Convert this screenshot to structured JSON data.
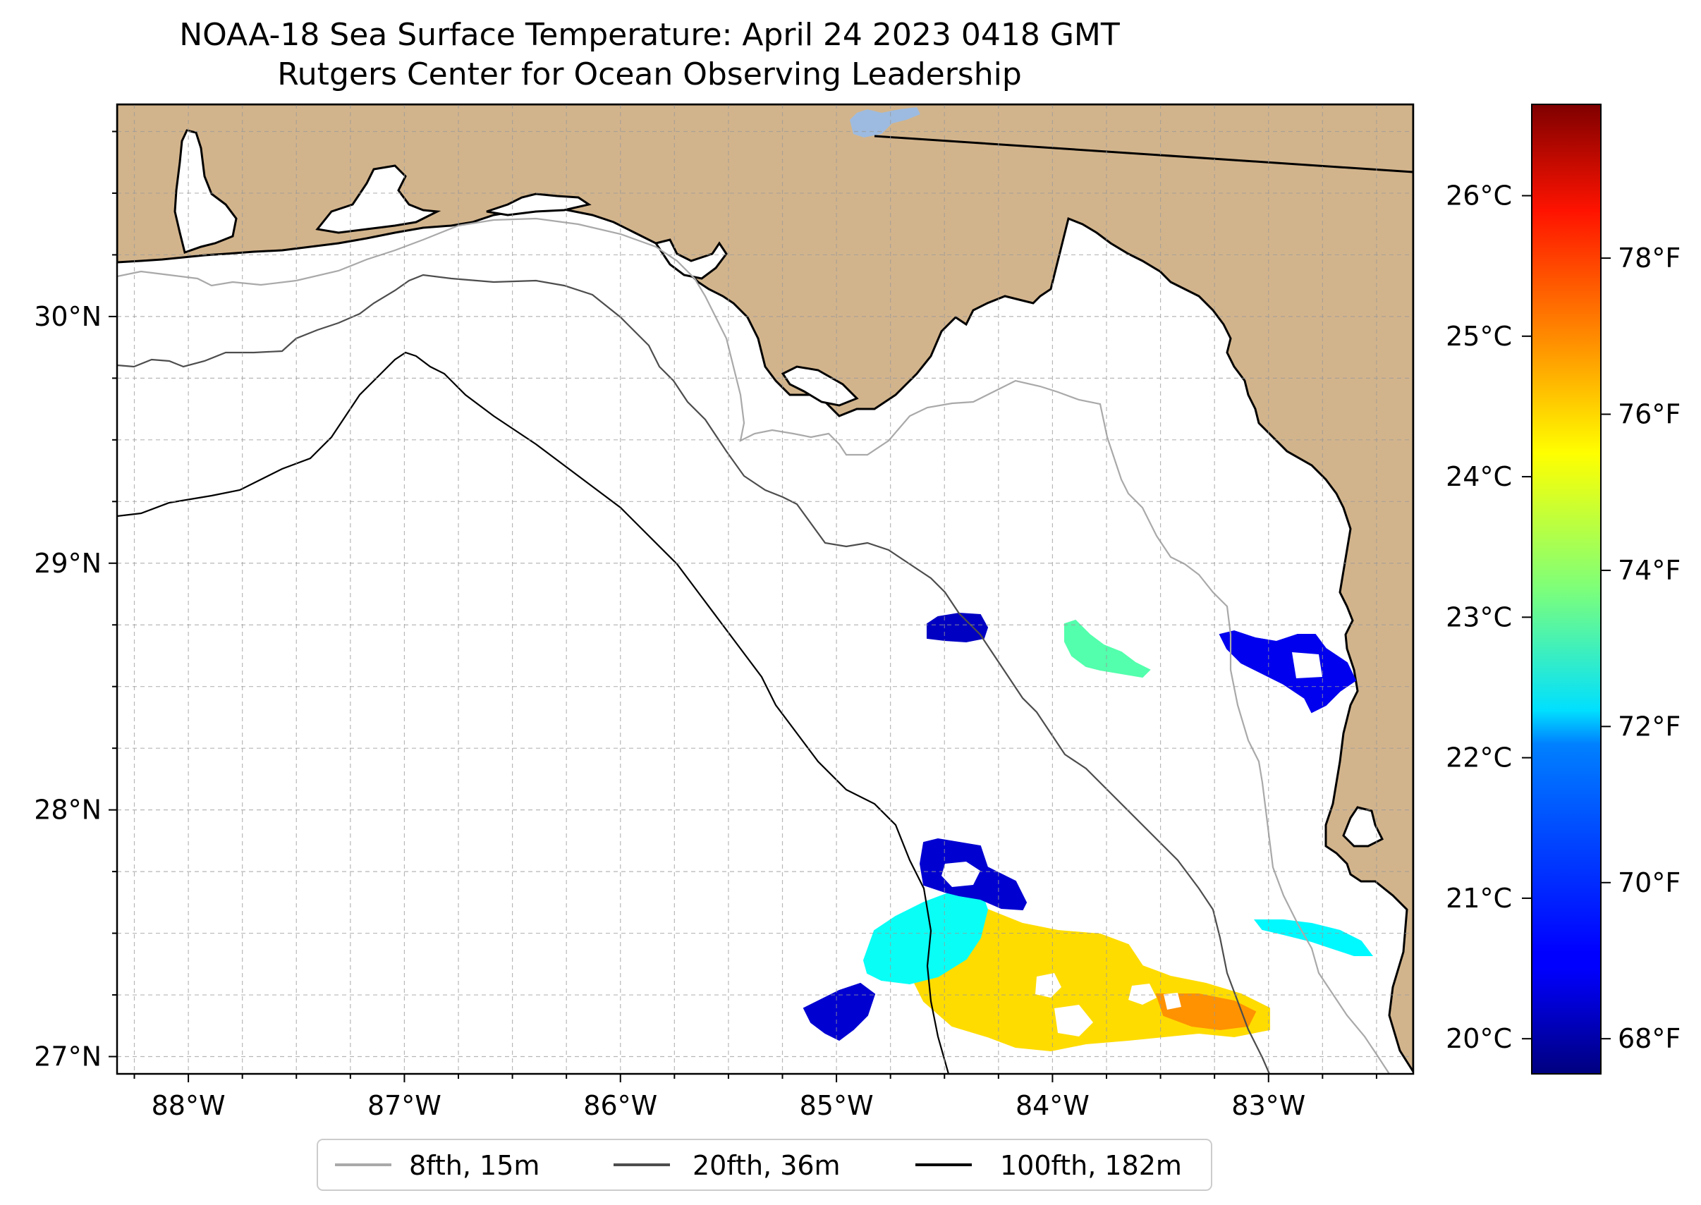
{
  "title": {
    "line1": "NOAA-18 Sea Surface Temperature: April 24 2023 0418 GMT",
    "line2": "Rutgers Center for Ocean Observing Leadership"
  },
  "map": {
    "lon_range": [
      -88.33,
      -82.33
    ],
    "lat_range": [
      26.93,
      30.86
    ],
    "lon_ticks": [
      {
        "value": -88,
        "label": "88°W"
      },
      {
        "value": -87,
        "label": "87°W"
      },
      {
        "value": -86,
        "label": "86°W"
      },
      {
        "value": -85,
        "label": "85°W"
      },
      {
        "value": -84,
        "label": "84°W"
      },
      {
        "value": -83,
        "label": "83°W"
      }
    ],
    "lat_ticks": [
      {
        "value": 27,
        "label": "27°N"
      },
      {
        "value": 28,
        "label": "28°N"
      },
      {
        "value": 29,
        "label": "29°N"
      },
      {
        "value": 30,
        "label": "30°N"
      }
    ],
    "gridlines": "dashed every 0.25°",
    "land_color": "#d2b48c",
    "water_color": "#ffffff",
    "lake_color": "#9dbbe0"
  },
  "colorbar": {
    "colormap": "jet",
    "celsius_range": [
      19.75,
      26.65
    ],
    "celsius_ticks": [
      {
        "value": 20,
        "label": "20°C"
      },
      {
        "value": 21,
        "label": "21°C"
      },
      {
        "value": 22,
        "label": "22°C"
      },
      {
        "value": 23,
        "label": "23°C"
      },
      {
        "value": 24,
        "label": "24°C"
      },
      {
        "value": 25,
        "label": "25°C"
      },
      {
        "value": 26,
        "label": "26°C"
      }
    ],
    "fahrenheit_ticks": [
      {
        "value": 68,
        "label": "68°F"
      },
      {
        "value": 70,
        "label": "70°F"
      },
      {
        "value": 72,
        "label": "72°F"
      },
      {
        "value": 74,
        "label": "74°F"
      },
      {
        "value": 76,
        "label": "76°F"
      },
      {
        "value": 78,
        "label": "78°F"
      }
    ]
  },
  "legend": {
    "position": "bottom-center",
    "entries": [
      {
        "label": "8fth, 15m",
        "color": "#a9a9a9"
      },
      {
        "label": "20fth, 36m",
        "color": "#4d4d4d"
      },
      {
        "label": "100fth, 182m",
        "color": "#000000"
      }
    ]
  },
  "sst_patches_celsius": [
    {
      "name": "big-patch-core",
      "temp_c": 24.3,
      "lon": -84.2,
      "lat": 27.25
    },
    {
      "name": "big-patch-west",
      "temp_c": 22.4,
      "lon": -84.85,
      "lat": 27.45
    },
    {
      "name": "big-patch-east",
      "temp_c": 24.8,
      "lon": -83.3,
      "lat": 27.2
    },
    {
      "name": "north-cold-patch",
      "temp_c": 20.3,
      "lon": -84.6,
      "lat": 27.75
    },
    {
      "name": "southwest-cold-patch",
      "temp_c": 20.3,
      "lon": -85.05,
      "lat": 27.17
    },
    {
      "name": "offshore-cold-patch",
      "temp_c": 20.2,
      "lon": -84.45,
      "lat": 28.75
    },
    {
      "name": "mid-green-patch",
      "temp_c": 22.9,
      "lon": -83.8,
      "lat": 28.7
    },
    {
      "name": "nearshore-cold-patch",
      "temp_c": 20.5,
      "lon": -82.9,
      "lat": 28.6
    },
    {
      "name": "nearshore-green-band",
      "temp_c": 22.3,
      "lon": -82.8,
      "lat": 27.5
    }
  ]
}
